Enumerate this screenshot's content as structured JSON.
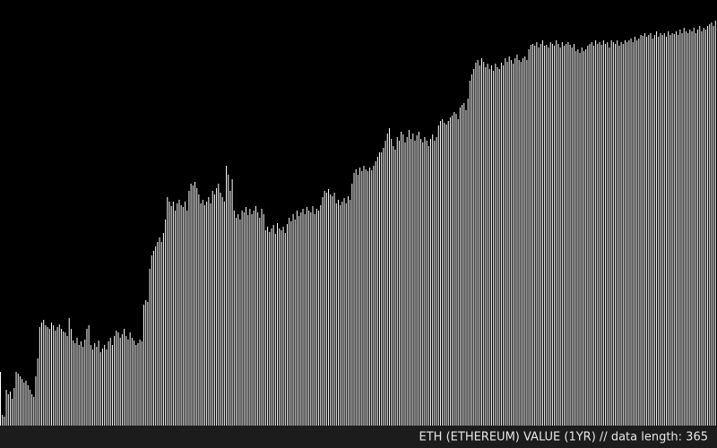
{
  "chart_data": {
    "type": "bar",
    "title": "ETH (ETHEREUM) VALUE (1YR) // data length: 365",
    "color": "#ffffff",
    "values": [
      60,
      12,
      10,
      40,
      35,
      38,
      30,
      42,
      60,
      58,
      55,
      52,
      48,
      50,
      45,
      40,
      35,
      32,
      55,
      75,
      110,
      115,
      118,
      112,
      110,
      108,
      115,
      112,
      106,
      110,
      113,
      108,
      105,
      104,
      100,
      120,
      108,
      95,
      92,
      98,
      90,
      94,
      88,
      96,
      108,
      112,
      90,
      85,
      92,
      88,
      95,
      82,
      86,
      90,
      85,
      94,
      98,
      90,
      100,
      106,
      104,
      98,
      102,
      108,
      100,
      96,
      104,
      98,
      95,
      90,
      92,
      96,
      94,
      135,
      140,
      138,
      175,
      190,
      195,
      200,
      205,
      210,
      205,
      215,
      230,
      255,
      250,
      245,
      250,
      240,
      248,
      252,
      246,
      244,
      250,
      240,
      262,
      270,
      268,
      272,
      265,
      258,
      248,
      252,
      246,
      250,
      255,
      248,
      262,
      258,
      265,
      270,
      260,
      255,
      250,
      290,
      280,
      262,
      275,
      240,
      232,
      236,
      230,
      240,
      238,
      244,
      235,
      242,
      236,
      240,
      245,
      238,
      232,
      242,
      236,
      218,
      222,
      216,
      220,
      224,
      214,
      226,
      220,
      218,
      222,
      215,
      225,
      232,
      228,
      236,
      230,
      240,
      234,
      238,
      242,
      236,
      244,
      240,
      238,
      245,
      236,
      242,
      240,
      246,
      255,
      262,
      260,
      264,
      258,
      256,
      260,
      248,
      252,
      246,
      250,
      254,
      248,
      256,
      252,
      270,
      282,
      286,
      280,
      288,
      284,
      290,
      286,
      284,
      288,
      285,
      290,
      295,
      300,
      305,
      305,
      310,
      318,
      326,
      332,
      320,
      312,
      308,
      322,
      318,
      328,
      325,
      316,
      322,
      330,
      320,
      326,
      318,
      324,
      328,
      320,
      316,
      322,
      318,
      312,
      320,
      325,
      318,
      322,
      335,
      340,
      342,
      338,
      336,
      340,
      344,
      346,
      350,
      348,
      342,
      355,
      358,
      360,
      352,
      365,
      385,
      392,
      398,
      405,
      408,
      402,
      410,
      406,
      400,
      404,
      398,
      402,
      396,
      404,
      400,
      398,
      405,
      402,
      410,
      406,
      412,
      408,
      404,
      410,
      414,
      408,
      406,
      410,
      412,
      408,
      420,
      425,
      426,
      424,
      428,
      422,
      426,
      430,
      424,
      425,
      422,
      428,
      426,
      424,
      430,
      426,
      422,
      428,
      424,
      426,
      428,
      425,
      422,
      426,
      418,
      420,
      416,
      422,
      418,
      420,
      424,
      426,
      428,
      424,
      430,
      426,
      428,
      425,
      430,
      426,
      428,
      422,
      430,
      428,
      426,
      430,
      424,
      428,
      426,
      430,
      428,
      430,
      432,
      428,
      434,
      430,
      432,
      436,
      435,
      438,
      434,
      436,
      438,
      432,
      436,
      440,
      434,
      438,
      436,
      438,
      434,
      440,
      436,
      438,
      437,
      440,
      436,
      442,
      438,
      444,
      440,
      438,
      442,
      440,
      444,
      438,
      442,
      446,
      440,
      444,
      442,
      446,
      448,
      450,
      446,
      452
    ]
  }
}
